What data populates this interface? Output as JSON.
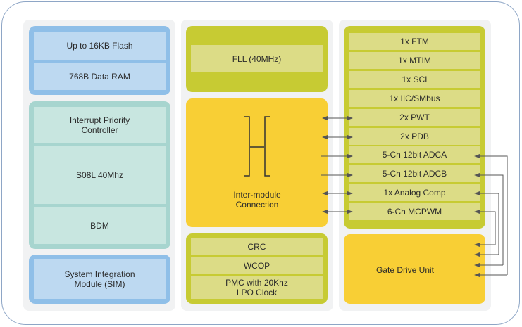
{
  "left_column": {
    "memory": [
      "Up to 16KB Flash",
      "768B Data RAM"
    ],
    "core": [
      "Interrupt Priority Controller",
      "S08L 40Mhz",
      "BDM"
    ],
    "sim": "System Integration Module (SIM)"
  },
  "middle_column": {
    "clock": "FLL (40MHz)",
    "interconnect": "Inter-module Connection",
    "system": [
      "CRC",
      "WCOP",
      "PMC with 20Khz  LPO Clock"
    ]
  },
  "right_column": {
    "peripherals": [
      "1x FTM",
      "1x MTIM",
      "1x SCI",
      "1x IIC/SMbus",
      "2x PWT",
      "2x PDB",
      "5-Ch 12bit ADCA",
      "5-Ch 12bit ADCB",
      "1x Analog Comp",
      "6-Ch MCPWM"
    ],
    "gate_drive": "Gate Drive Unit"
  },
  "colors": {
    "memory": "#8fbfe8",
    "core": "#a7d5cf",
    "clock": "#c7cb33",
    "interconnect": "#f8cf35",
    "frame": "#8ea6c6"
  }
}
